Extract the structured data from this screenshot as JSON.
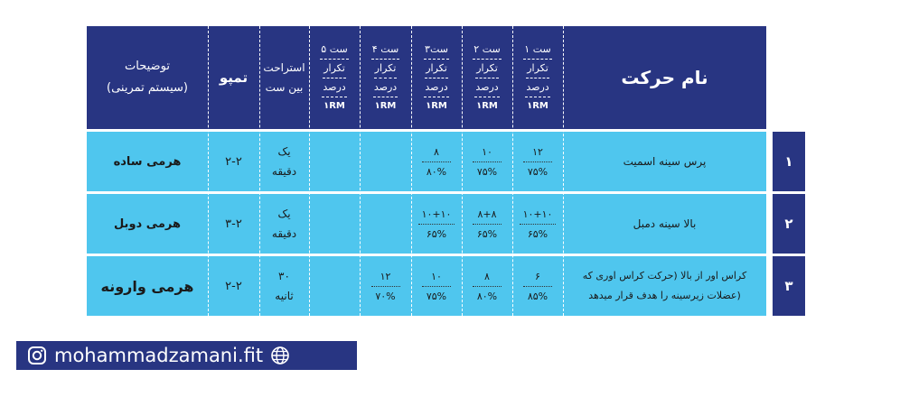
{
  "header": {
    "movement": "نام حرکت",
    "sets": [
      {
        "title": "ست ۱",
        "reps": "تکرار",
        "pct": "درصد",
        "rm": "۱RM"
      },
      {
        "title": "ست ۲",
        "reps": "تکرار",
        "pct": "درصد",
        "rm": "۱RM"
      },
      {
        "title": "ست۳",
        "reps": "تکرار",
        "pct": "درصد",
        "rm": "۱RM"
      },
      {
        "title": "ست ۴",
        "reps": "تکرار",
        "pct": "درصد",
        "rm": "۱RM"
      },
      {
        "title": "ست ۵",
        "reps": "تکرار",
        "pct": "درصد",
        "rm": "۱RM"
      }
    ],
    "rest_line1": "استراحت",
    "rest_line2": "بین ست",
    "tempo": "تمپو",
    "notes_line1": "توضیحات",
    "notes_line2": "(سیستم تمرینی)"
  },
  "rows": [
    {
      "num": "۱",
      "name_line1": "پرس سینه اسمیت",
      "name_line2": "",
      "sets": [
        {
          "reps": "۱۲",
          "pct": "۷۵%"
        },
        {
          "reps": "۱۰",
          "pct": "۷۵%"
        },
        {
          "reps": "۸",
          "pct": "۸۰%"
        },
        {
          "reps": "",
          "pct": ""
        },
        {
          "reps": "",
          "pct": ""
        }
      ],
      "rest_line1": "یک",
      "rest_line2": "دقیقه",
      "tempo": "۲-۲",
      "notes": "هرمی ساده"
    },
    {
      "num": "۲",
      "name_line1": "بالا سینه دمبل",
      "name_line2": "",
      "sets": [
        {
          "reps": "۱۰+۱۰",
          "pct": "۶۵%"
        },
        {
          "reps": "۸+۸",
          "pct": "۶۵%"
        },
        {
          "reps": "۱۰+۱۰",
          "pct": "۶۵%"
        },
        {
          "reps": "",
          "pct": ""
        },
        {
          "reps": "",
          "pct": ""
        }
      ],
      "rest_line1": "یک",
      "rest_line2": "دقیقه",
      "tempo": "۳-۲",
      "notes": "هرمی دوبل"
    },
    {
      "num": "۳",
      "name_line1": "کراس اور از بالا (حرکت کراس اوری که",
      "name_line2": "عضلات زیرسینه را هدف قرار میدهد)",
      "sets": [
        {
          "reps": "۶",
          "pct": "۸۵%"
        },
        {
          "reps": "۸",
          "pct": "۸۰%"
        },
        {
          "reps": "۱۰",
          "pct": "۷۵%"
        },
        {
          "reps": "۱۲",
          "pct": "۷۰%"
        },
        {
          "reps": "",
          "pct": ""
        }
      ],
      "rest_line1": "۳۰",
      "rest_line2": "ثانیه",
      "tempo": "۲-۲",
      "notes": "هرمی وارونه"
    }
  ],
  "footer": {
    "handle": "mohammadzamani.fit",
    "icons": [
      "instagram-icon",
      "globe-icon"
    ]
  },
  "colors": {
    "header_bg": "#283582",
    "row_bg": "#4fc6ee",
    "footer_bg": "#283582"
  }
}
